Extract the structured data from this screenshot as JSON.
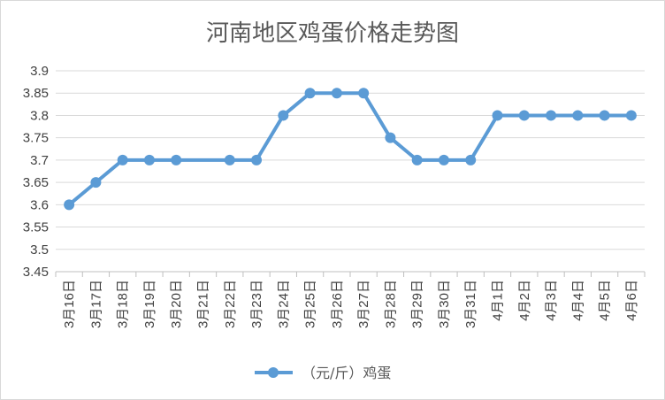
{
  "chart_data": {
    "type": "line",
    "title": "河南地区鸡蛋价格走势图",
    "xlabel": "",
    "ylabel": "",
    "categories": [
      "3月16日",
      "3月17日",
      "3月18日",
      "3月19日",
      "3月20日",
      "3月21日",
      "3月22日",
      "3月23日",
      "3月24日",
      "3月25日",
      "3月26日",
      "3月27日",
      "3月28日",
      "3月29日",
      "3月30日",
      "3月31日",
      "4月1日",
      "4月2日",
      "4月3日",
      "4月4日",
      "4月5日",
      "4月6日"
    ],
    "series": [
      {
        "name": "（元/斤）鸡蛋",
        "color": "#5b9bd5",
        "points": [
          {
            "x": "3月16日",
            "y": 3.6
          },
          {
            "x": "3月17日",
            "y": 3.65
          },
          {
            "x": "3月18日",
            "y": 3.7
          },
          {
            "x": "3月19日",
            "y": 3.7
          },
          {
            "x": "3月20日",
            "y": 3.7
          },
          {
            "x": "3月22日",
            "y": 3.7
          },
          {
            "x": "3月23日",
            "y": 3.7
          },
          {
            "x": "3月24日",
            "y": 3.8
          },
          {
            "x": "3月25日",
            "y": 3.85
          },
          {
            "x": "3月26日",
            "y": 3.85
          },
          {
            "x": "3月27日",
            "y": 3.85
          },
          {
            "x": "3月28日",
            "y": 3.75
          },
          {
            "x": "3月29日",
            "y": 3.7
          },
          {
            "x": "3月30日",
            "y": 3.7
          },
          {
            "x": "3月31日",
            "y": 3.7
          },
          {
            "x": "4月1日",
            "y": 3.8
          },
          {
            "x": "4月2日",
            "y": 3.8
          },
          {
            "x": "4月3日",
            "y": 3.8
          },
          {
            "x": "4月4日",
            "y": 3.8
          },
          {
            "x": "4月5日",
            "y": 3.8
          },
          {
            "x": "4月6日",
            "y": 3.8
          }
        ]
      }
    ],
    "ylim": [
      3.45,
      3.9
    ],
    "yticks": [
      "3.45",
      "3.5",
      "3.55",
      "3.6",
      "3.65",
      "3.7",
      "3.75",
      "3.8",
      "3.85",
      "3.9"
    ],
    "grid": true,
    "legend": "bottom",
    "gridColor": "#d9d9d9",
    "axisColor": "#bfbfbf"
  }
}
